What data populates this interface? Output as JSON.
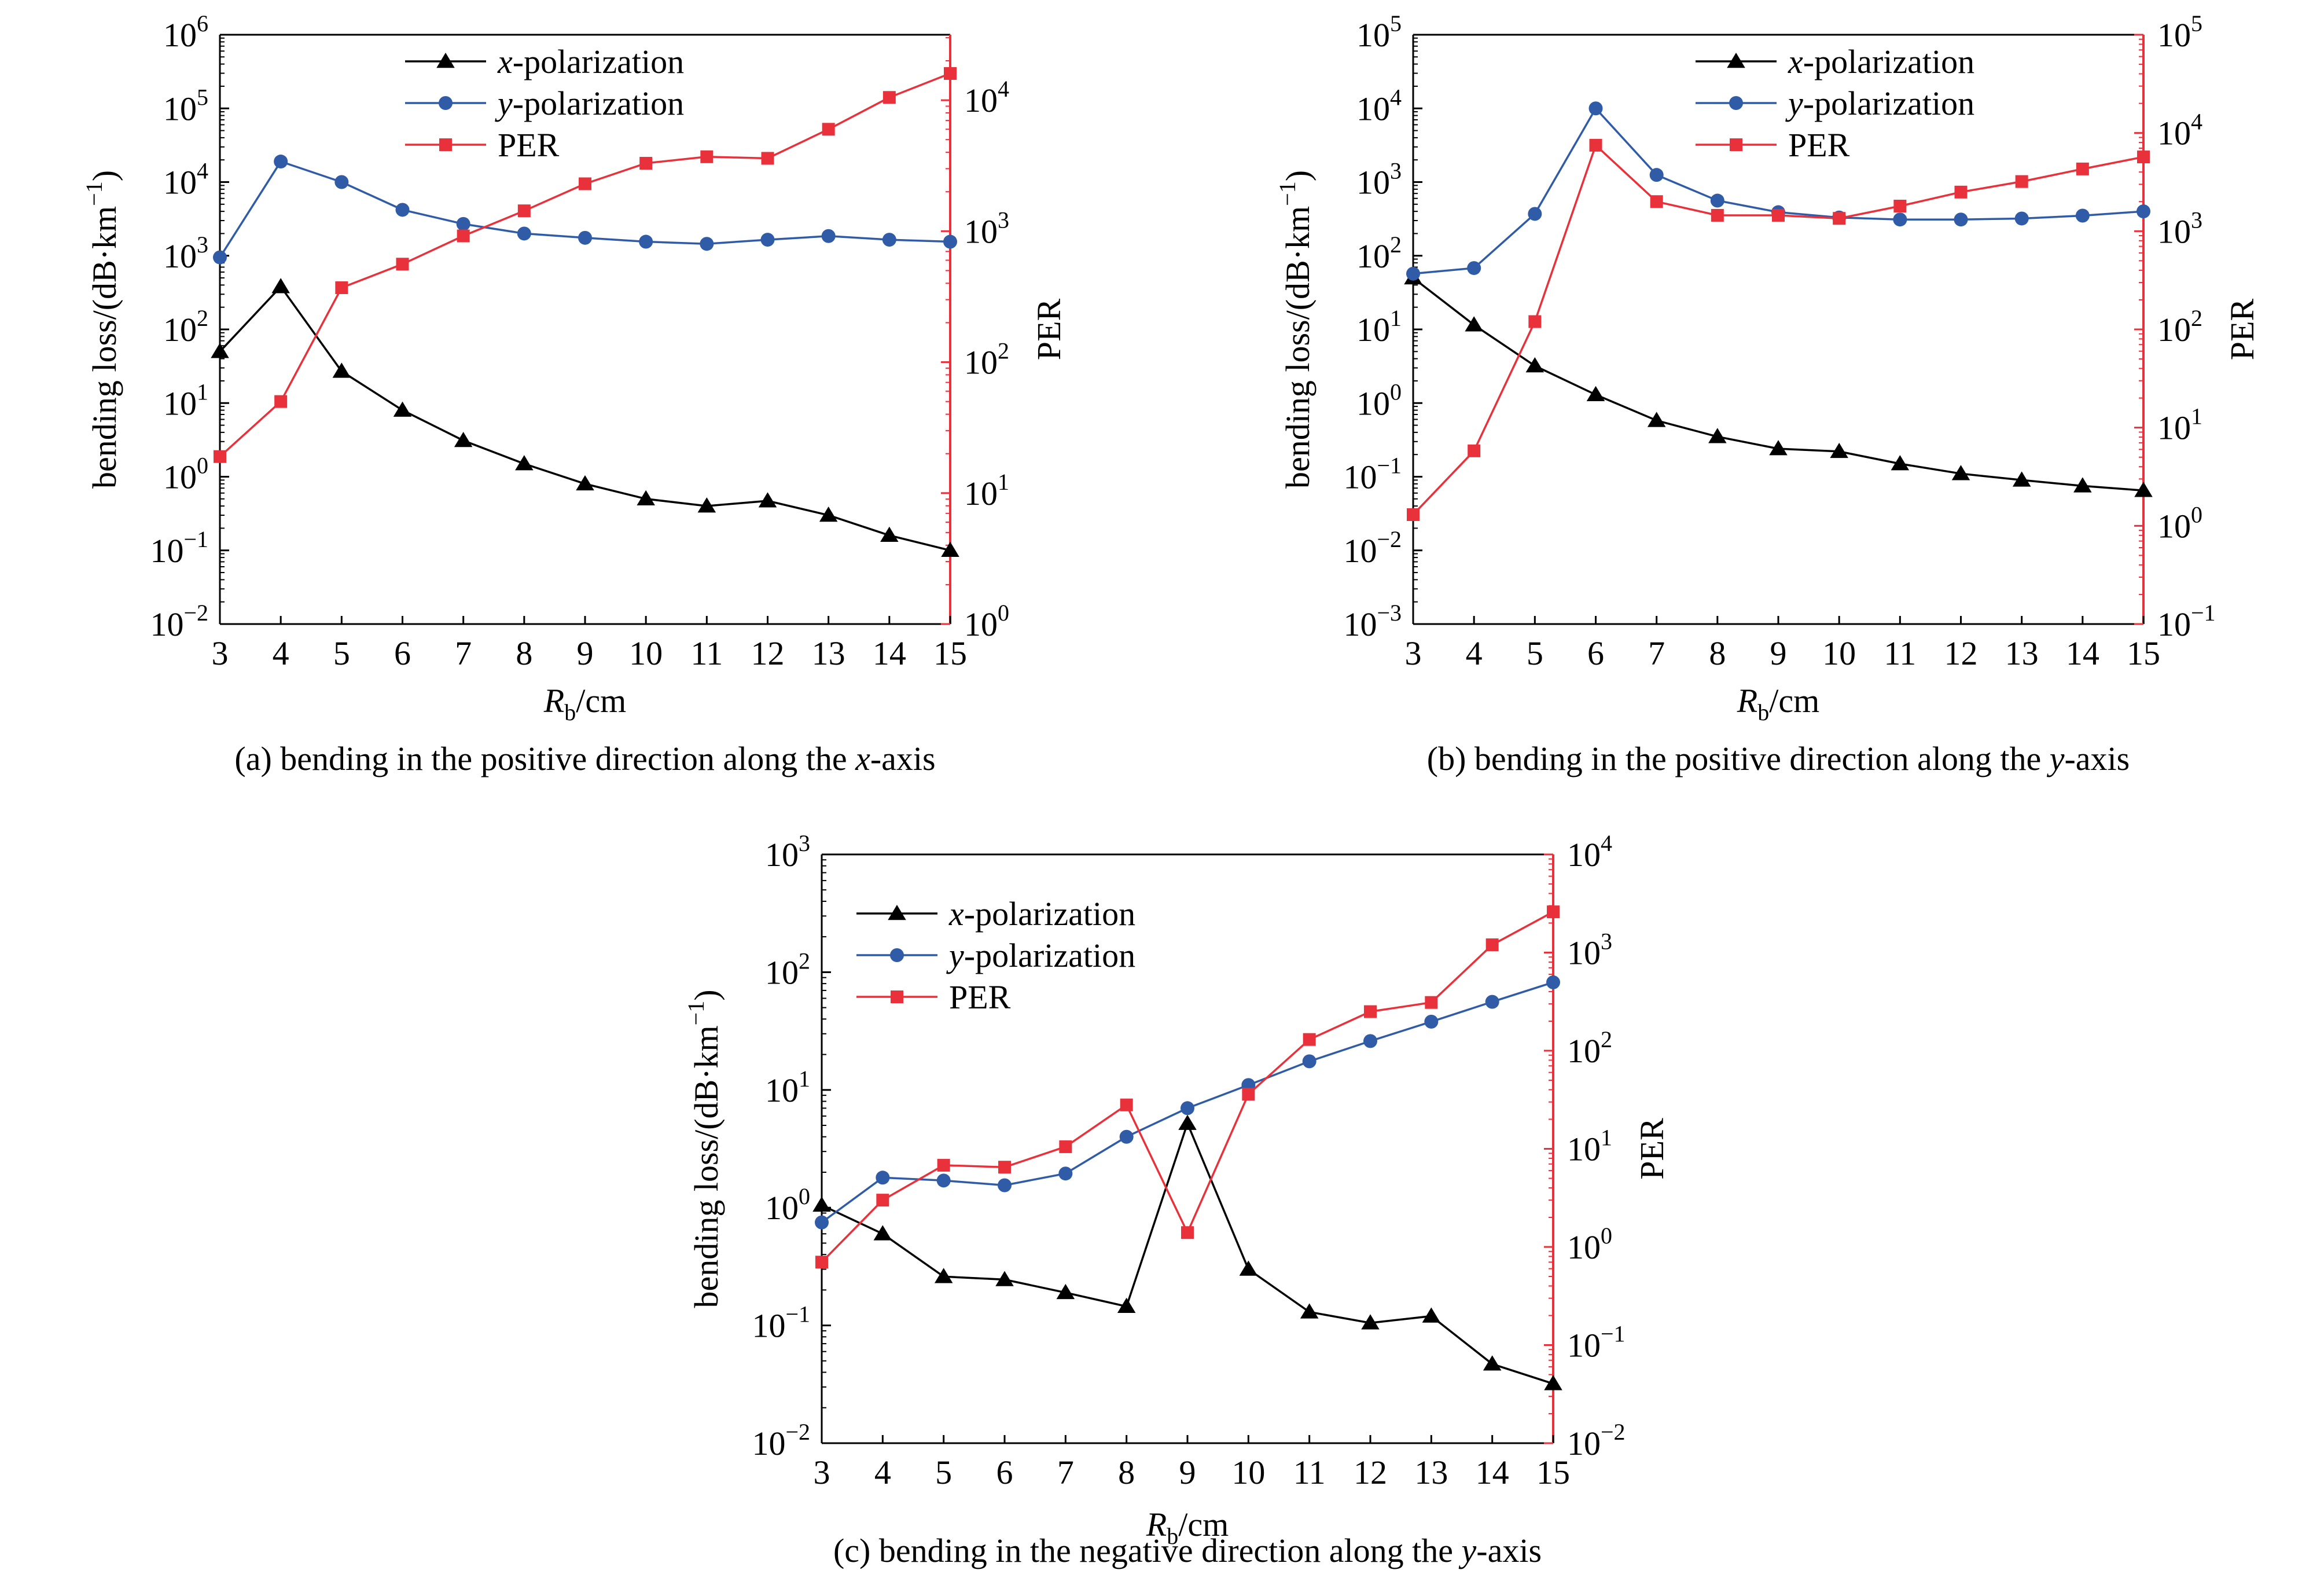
{
  "chart_data": [
    {
      "id": "a",
      "type": "line",
      "caption_main": "(a) bending in the positive direction along the ",
      "caption_axis": "x",
      "caption_tail": "-axis",
      "xlabel_sym": "R",
      "xlabel_sub": "b",
      "xlabel_unit": "/cm",
      "ylabel": "bending loss/(dB·km",
      "ylabel_exp": "−1",
      "ylabel_close": ")",
      "y2label": "PER",
      "x": [
        3,
        4,
        5,
        6,
        7,
        8,
        9,
        10,
        11,
        12,
        13,
        14,
        15
      ],
      "xlim": [
        3,
        15
      ],
      "yscale": "log",
      "ylim_exp": [
        -2,
        6
      ],
      "y2scale": "log",
      "y2lim_exp": [
        0,
        4.5
      ],
      "y2ticks": [
        0,
        1,
        2,
        3,
        4
      ],
      "legend_position": "top-center",
      "series": [
        {
          "name_var": "x",
          "name_rest": "-polarization",
          "axis": "left",
          "marker": "triangle",
          "color": "#000000",
          "values": [
            50,
            380,
            27,
            8,
            3.1,
            1.5,
            0.8,
            0.5,
            0.4,
            0.47,
            0.3,
            0.16,
            0.1
          ]
        },
        {
          "name_var": "y",
          "name_rest": "-polarization",
          "axis": "left",
          "marker": "circle",
          "color": "#2f5ba7",
          "values": [
            950,
            19000,
            10000,
            4200,
            2700,
            2000,
            1750,
            1550,
            1450,
            1650,
            1850,
            1650,
            1550
          ]
        },
        {
          "name_var": "",
          "name_rest": "PER",
          "axis": "right",
          "marker": "square",
          "color": "#e8313a",
          "values": [
            19,
            50,
            370,
            560,
            920,
            1430,
            2300,
            3300,
            3700,
            3600,
            6000,
            10500,
            16000
          ]
        }
      ]
    },
    {
      "id": "b",
      "type": "line",
      "caption_main": "(b) bending in the positive direction along the ",
      "caption_axis": "y",
      "caption_tail": "-axis",
      "xlabel_sym": "R",
      "xlabel_sub": "b",
      "xlabel_unit": "/cm",
      "ylabel": "bending loss/(dB·km",
      "ylabel_exp": "−1",
      "ylabel_close": ")",
      "y2label": "PER",
      "x": [
        3,
        4,
        5,
        6,
        7,
        8,
        9,
        10,
        11,
        12,
        13,
        14,
        15
      ],
      "xlim": [
        3,
        15
      ],
      "yscale": "log",
      "ylim_exp": [
        -3,
        5
      ],
      "y2scale": "log",
      "y2lim_exp": [
        -1,
        5
      ],
      "y2ticks": [
        -1,
        0,
        1,
        2,
        3,
        4,
        5
      ],
      "legend_position": "top-center",
      "series": [
        {
          "name_var": "x",
          "name_rest": "-polarization",
          "axis": "left",
          "marker": "triangle",
          "color": "#000000",
          "values": [
            50,
            11.5,
            3.2,
            1.3,
            0.58,
            0.35,
            0.24,
            0.22,
            0.15,
            0.11,
            0.09,
            0.075,
            0.065
          ]
        },
        {
          "name_var": "y",
          "name_rest": "-polarization",
          "axis": "left",
          "marker": "circle",
          "color": "#2f5ba7",
          "values": [
            57,
            68,
            370,
            10000,
            1250,
            560,
            390,
            330,
            310,
            310,
            320,
            350,
            400
          ]
        },
        {
          "name_var": "",
          "name_rest": "PER",
          "axis": "right",
          "marker": "square",
          "color": "#e8313a",
          "values": [
            1.3,
            5.8,
            120,
            7500,
            2000,
            1450,
            1450,
            1350,
            1800,
            2500,
            3200,
            4300,
            5700
          ]
        }
      ]
    },
    {
      "id": "c",
      "type": "line",
      "caption_main": "(c) bending in the negative direction along the ",
      "caption_axis": "y",
      "caption_tail": "-axis",
      "xlabel_sym": "R",
      "xlabel_sub": "b",
      "xlabel_unit": "/cm",
      "ylabel": "bending loss/(dB·km",
      "ylabel_exp": "−1",
      "ylabel_close": ")",
      "y2label": "PER",
      "x": [
        3,
        4,
        5,
        6,
        7,
        8,
        9,
        10,
        11,
        12,
        13,
        14,
        15
      ],
      "xlim": [
        3,
        15
      ],
      "yscale": "log",
      "ylim_exp": [
        -2,
        3
      ],
      "y2scale": "log",
      "y2lim_exp": [
        -2,
        4
      ],
      "y2ticks": [
        -2,
        -1,
        0,
        1,
        2,
        3,
        4
      ],
      "legend_position": "top-left",
      "series": [
        {
          "name_var": "x",
          "name_rest": "-polarization",
          "axis": "left",
          "marker": "triangle",
          "color": "#000000",
          "values": [
            1.05,
            0.6,
            0.26,
            0.245,
            0.19,
            0.145,
            5.2,
            0.3,
            0.13,
            0.105,
            0.12,
            0.047,
            0.032
          ]
        },
        {
          "name_var": "y",
          "name_rest": "-polarization",
          "axis": "left",
          "marker": "circle",
          "color": "#2f5ba7",
          "values": [
            0.75,
            1.8,
            1.7,
            1.55,
            1.95,
            4.0,
            7.0,
            11.0,
            17.5,
            26,
            38,
            56,
            82
          ]
        },
        {
          "name_var": "",
          "name_rest": "PER",
          "axis": "right",
          "marker": "square",
          "color": "#e8313a",
          "values": [
            0.7,
            3.0,
            6.8,
            6.5,
            10.5,
            28,
            1.4,
            36,
            130,
            250,
            310,
            1200,
            2600
          ]
        }
      ]
    }
  ]
}
